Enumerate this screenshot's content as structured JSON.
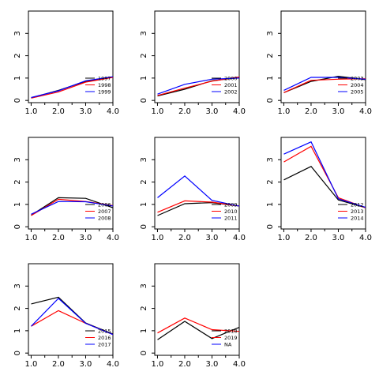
{
  "chart_data": {
    "type": "line",
    "layout": "3x3 grid of panels, 8 panels drawn, bottom-right empty",
    "grid": false,
    "legend_position": "bottom-right",
    "colors": [
      "#000000",
      "#ff0000",
      "#0000ff"
    ],
    "x": [
      1,
      2,
      3,
      4
    ],
    "x_tick_labels": [
      "1.0",
      "2.0",
      "3.0",
      "4.0"
    ],
    "y_ticks": [
      0,
      1,
      2,
      3
    ],
    "y_tick_labels": [
      "0",
      "1",
      "2",
      "3"
    ],
    "xlim": [
      0.9,
      4.0
    ],
    "ylim": [
      -0.1,
      4.0
    ],
    "panels": [
      {
        "series": [
          {
            "name": "1997",
            "color": "#000000",
            "values": [
              0.12,
              0.45,
              0.85,
              1.05
            ]
          },
          {
            "name": "1998",
            "color": "#ff0000",
            "values": [
              0.1,
              0.38,
              0.82,
              1.03
            ]
          },
          {
            "name": "1999",
            "color": "#0000ff",
            "values": [
              0.13,
              0.43,
              0.88,
              1.06
            ]
          }
        ]
      },
      {
        "series": [
          {
            "name": "2000",
            "color": "#000000",
            "values": [
              0.2,
              0.5,
              0.88,
              1.02
            ]
          },
          {
            "name": "2001",
            "color": "#ff0000",
            "values": [
              0.22,
              0.55,
              0.86,
              1.05
            ]
          },
          {
            "name": "2002",
            "color": "#0000ff",
            "values": [
              0.28,
              0.72,
              0.95,
              1.0
            ]
          }
        ]
      },
      {
        "series": [
          {
            "name": "2003",
            "color": "#000000",
            "values": [
              0.35,
              0.85,
              1.08,
              0.93
            ]
          },
          {
            "name": "2004",
            "color": "#ff0000",
            "values": [
              0.35,
              0.9,
              0.95,
              0.97
            ]
          },
          {
            "name": "2005",
            "color": "#0000ff",
            "values": [
              0.45,
              1.03,
              1.03,
              0.95
            ]
          }
        ]
      },
      {
        "series": [
          {
            "name": "2006",
            "color": "#000000",
            "values": [
              0.52,
              1.3,
              1.27,
              0.85
            ]
          },
          {
            "name": "2007",
            "color": "#ff0000",
            "values": [
              0.5,
              1.23,
              1.13,
              0.95
            ]
          },
          {
            "name": "2008",
            "color": "#0000ff",
            "values": [
              0.56,
              1.13,
              1.12,
              0.93
            ]
          }
        ]
      },
      {
        "series": [
          {
            "name": "2009",
            "color": "#000000",
            "values": [
              0.5,
              1.03,
              1.08,
              0.93
            ]
          },
          {
            "name": "2010",
            "color": "#ff0000",
            "values": [
              0.65,
              1.16,
              1.1,
              0.93
            ]
          },
          {
            "name": "2011",
            "color": "#0000ff",
            "values": [
              1.3,
              2.27,
              1.18,
              0.92
            ]
          }
        ]
      },
      {
        "series": [
          {
            "name": "2012",
            "color": "#000000",
            "values": [
              2.1,
              2.7,
              1.2,
              0.85
            ]
          },
          {
            "name": "2013",
            "color": "#ff0000",
            "values": [
              2.9,
              3.6,
              1.3,
              0.85
            ]
          },
          {
            "name": "2014",
            "color": "#0000ff",
            "values": [
              3.25,
              3.8,
              1.25,
              0.87
            ]
          }
        ]
      },
      {
        "series": [
          {
            "name": "2015",
            "color": "#000000",
            "values": [
              2.2,
              2.5,
              1.35,
              0.85
            ]
          },
          {
            "name": "2016",
            "color": "#ff0000",
            "values": [
              1.2,
              1.9,
              1.33,
              0.83
            ]
          },
          {
            "name": "2017",
            "color": "#0000ff",
            "values": [
              1.2,
              2.45,
              1.33,
              0.83
            ]
          }
        ]
      },
      {
        "series": [
          {
            "name": "2018",
            "color": "#000000",
            "values": [
              0.6,
              1.42,
              0.65,
              1.15
            ]
          },
          {
            "name": "2019",
            "color": "#ff0000",
            "values": [
              0.9,
              1.57,
              1.05,
              0.97
            ]
          },
          {
            "name": "NA",
            "color": "#0000ff",
            "values": []
          }
        ]
      }
    ]
  }
}
